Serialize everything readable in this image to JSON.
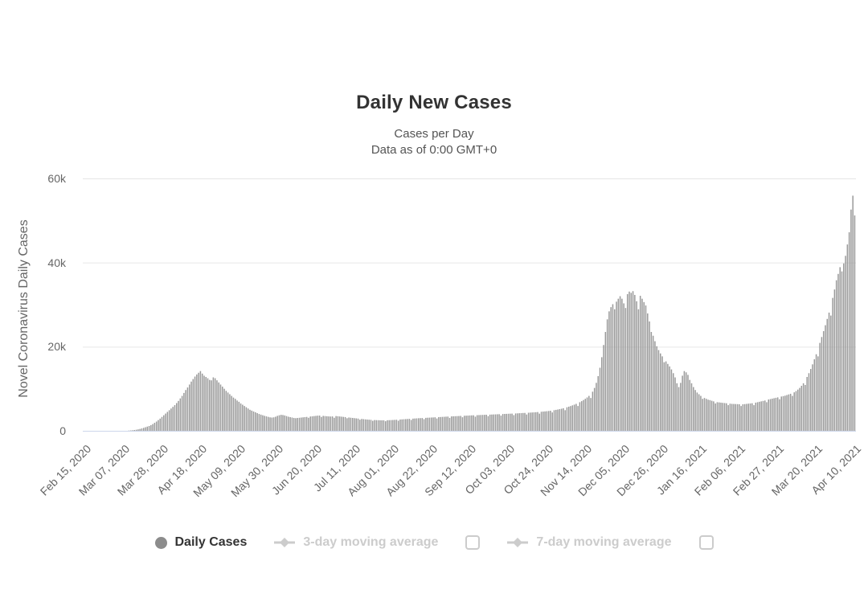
{
  "colors": {
    "bar": "#999999",
    "grid_line": "#e6e6e6",
    "axis_line": "#ccd6eb",
    "title_text": "#333333",
    "subtitle_text": "#545454",
    "tick_text": "#666666",
    "active_legend_text": "#333333",
    "disabled_legend_text": "#cccccc",
    "background": "#ffffff"
  },
  "legend": {
    "checkbox_3day_checked": false,
    "checkbox_7day_checked": false
  },
  "chart_data": {
    "type": "bar",
    "title": "Daily New Cases",
    "subtitle1": "Cases per Day",
    "subtitle2": "Data as of 0:00 GMT+0",
    "ylabel": "Novel Coronavirus Daily Cases",
    "xlabel": "",
    "ylim": [
      0,
      60000
    ],
    "y_tick_values": [
      0,
      20000,
      40000,
      60000
    ],
    "y_tick_labels": [
      "0",
      "20k",
      "40k",
      "60k"
    ],
    "grid": "horizontal",
    "legend_position": "bottom",
    "x_start_date": "Feb 15, 2020",
    "x_end_date": "Apr 10, 2021",
    "x_tick_interval_days": 21,
    "x_tick_labels": [
      "Feb 15, 2020",
      "Mar 07, 2020",
      "Mar 28, 2020",
      "Apr 18, 2020",
      "May 09, 2020",
      "May 30, 2020",
      "Jun 20, 2020",
      "Jul 11, 2020",
      "Aug 01, 2020",
      "Aug 22, 2020",
      "Sep 12, 2020",
      "Oct 03, 2020",
      "Oct 24, 2020",
      "Nov 14, 2020",
      "Dec 05, 2020",
      "Dec 26, 2020",
      "Jan 16, 2021",
      "Feb 06, 2021",
      "Feb 27, 2021",
      "Mar 20, 2021",
      "Apr 10, 2021"
    ],
    "series": [
      {
        "name": "Daily Cases",
        "type": "bar",
        "color": "#999999",
        "visible": true,
        "values": [
          0,
          0,
          0,
          0,
          0,
          0,
          0,
          0,
          0,
          0,
          0,
          0,
          0,
          0,
          0,
          0,
          0,
          0,
          0,
          0,
          0,
          0,
          0,
          0,
          60,
          90,
          130,
          190,
          260,
          340,
          440,
          560,
          700,
          850,
          1000,
          1150,
          1350,
          1600,
          1900,
          2200,
          2550,
          2900,
          3300,
          3700,
          4100,
          4500,
          4900,
          5300,
          5700,
          6100,
          6600,
          7100,
          7700,
          8300,
          9000,
          9700,
          10300,
          11000,
          11700,
          12300,
          12900,
          13400,
          13800,
          14200,
          13600,
          13100,
          12800,
          12500,
          12100,
          12000,
          12700,
          12500,
          12000,
          11500,
          11000,
          10500,
          10000,
          9500,
          9100,
          8700,
          8300,
          7900,
          7600,
          7200,
          6900,
          6500,
          6200,
          5900,
          5600,
          5300,
          5000,
          4800,
          4600,
          4400,
          4200,
          4000,
          3850,
          3700,
          3560,
          3430,
          3310,
          3200,
          3150,
          3200,
          3350,
          3550,
          3700,
          3800,
          3750,
          3650,
          3500,
          3350,
          3250,
          3150,
          3050,
          3000,
          3050,
          3100,
          3150,
          3200,
          3250,
          3300,
          3100,
          3400,
          3450,
          3500,
          3550,
          3600,
          3620,
          3300,
          3550,
          3500,
          3460,
          3420,
          3400,
          3420,
          3100,
          3500,
          3460,
          3410,
          3360,
          3310,
          3260,
          2990,
          3160,
          3110,
          3060,
          3010,
          2960,
          2910,
          2640,
          2820,
          2770,
          2720,
          2680,
          2640,
          2610,
          2380,
          2560,
          2540,
          2520,
          2500,
          2490,
          2490,
          2280,
          2510,
          2530,
          2550,
          2570,
          2600,
          2630,
          2400,
          2690,
          2720,
          2750,
          2780,
          2810,
          2840,
          2590,
          2900,
          2930,
          2960,
          2990,
          3010,
          3030,
          2770,
          3080,
          3110,
          3130,
          3160,
          3180,
          3210,
          2930,
          3260,
          3280,
          3310,
          3330,
          3360,
          3380,
          3080,
          3430,
          3450,
          3470,
          3490,
          3510,
          3540,
          3230,
          3580,
          3600,
          3620,
          3650,
          3670,
          3690,
          3370,
          3720,
          3740,
          3760,
          3780,
          3800,
          3820,
          3490,
          3850,
          3870,
          3890,
          3910,
          3930,
          3950,
          3610,
          3990,
          4010,
          4030,
          4050,
          4070,
          4090,
          3730,
          4130,
          4150,
          4180,
          4200,
          4230,
          4250,
          3880,
          4300,
          4330,
          4360,
          4390,
          4420,
          4460,
          4080,
          4530,
          4570,
          4610,
          4660,
          4710,
          4770,
          4370,
          4900,
          4980,
          5060,
          5150,
          5250,
          5360,
          4900,
          5600,
          5740,
          5890,
          6050,
          6220,
          6400,
          5900,
          6800,
          7050,
          7320,
          7610,
          7930,
          8300,
          7800,
          9300,
          10200,
          11400,
          13000,
          15000,
          17500,
          20400,
          23500,
          26500,
          28400,
          29400,
          30100,
          28900,
          30700,
          31400,
          32000,
          31400,
          30300,
          29200,
          32500,
          33100,
          32800,
          33200,
          32300,
          30800,
          28900,
          32100,
          31400,
          30600,
          29800,
          27900,
          26000,
          23500,
          22600,
          21300,
          20100,
          19200,
          18400,
          17700,
          16300,
          16500,
          15900,
          15300,
          14600,
          13700,
          12700,
          11300,
          10400,
          11400,
          13100,
          14200,
          13900,
          13300,
          12100,
          11300,
          10400,
          9700,
          9100,
          8700,
          8300,
          7600,
          7800,
          7600,
          7400,
          7300,
          7150,
          7000,
          6500,
          6800,
          6750,
          6700,
          6650,
          6600,
          6550,
          6100,
          6450,
          6400,
          6380,
          6360,
          6340,
          6320,
          5900,
          6310,
          6350,
          6400,
          6450,
          6500,
          6550,
          6100,
          6700,
          6800,
          6900,
          7000,
          7100,
          7200,
          6800,
          7450,
          7550,
          7650,
          7750,
          7850,
          7950,
          7500,
          8150,
          8250,
          8350,
          8500,
          8650,
          8800,
          8300,
          9150,
          9450,
          9800,
          10200,
          10700,
          11300,
          10900,
          12800,
          13700,
          14700,
          15800,
          17000,
          18200,
          17700,
          20900,
          22300,
          23700,
          25100,
          26600,
          28100,
          27400,
          31600,
          33600,
          35800,
          37300,
          38900,
          37900,
          39800,
          41600,
          44300,
          47200,
          52600,
          55900,
          51200
        ]
      },
      {
        "name": "3-day moving average",
        "type": "line",
        "color": "#cccccc",
        "visible": false
      },
      {
        "name": "7-day moving average",
        "type": "line",
        "color": "#cccccc",
        "visible": false
      }
    ]
  }
}
